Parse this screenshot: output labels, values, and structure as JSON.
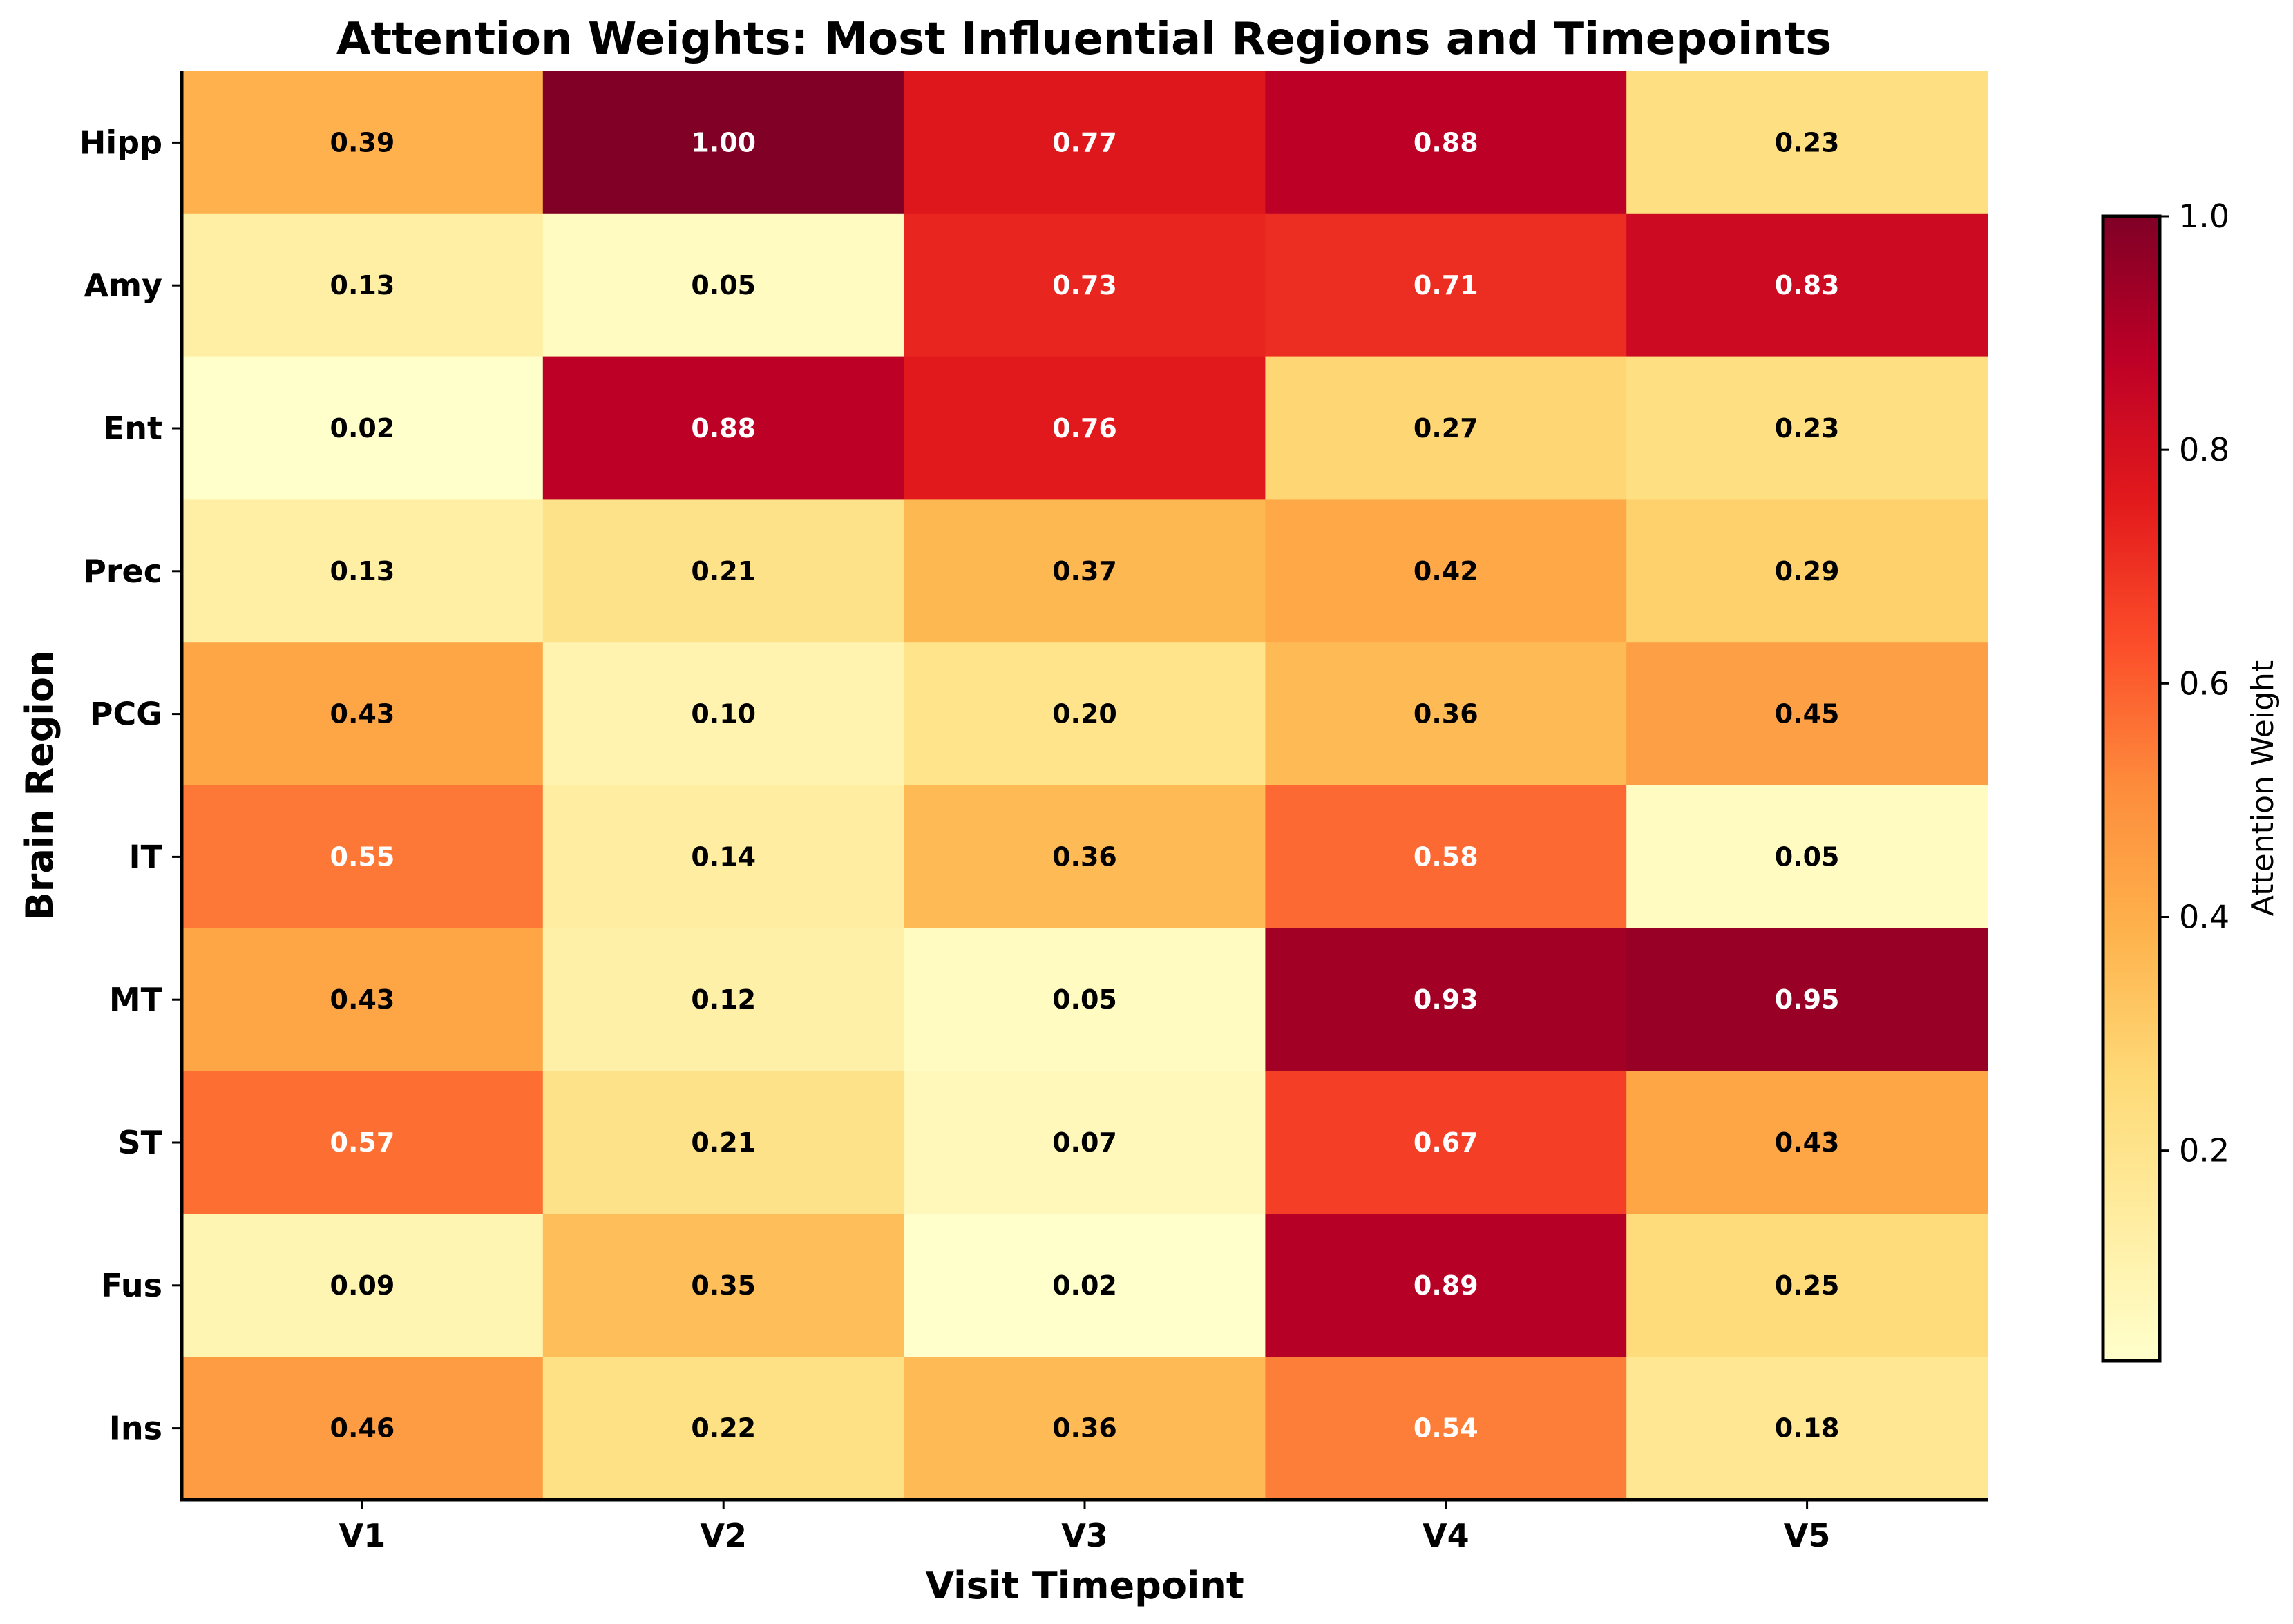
{
  "chart_data": {
    "type": "heatmap",
    "title": "Attention Weights: Most Influential Regions and Timepoints",
    "xlabel": "Visit Timepoint",
    "ylabel": "Brain Region",
    "x_categories": [
      "V1",
      "V2",
      "V3",
      "V4",
      "V5"
    ],
    "y_categories": [
      "Hipp",
      "Amy",
      "Ent",
      "Prec",
      "PCG",
      "IT",
      "MT",
      "ST",
      "Fus",
      "Ins"
    ],
    "values": [
      [
        0.39,
        1.0,
        0.77,
        0.88,
        0.23
      ],
      [
        0.13,
        0.05,
        0.73,
        0.71,
        0.83
      ],
      [
        0.02,
        0.88,
        0.76,
        0.27,
        0.23
      ],
      [
        0.13,
        0.21,
        0.37,
        0.42,
        0.29
      ],
      [
        0.43,
        0.1,
        0.2,
        0.36,
        0.45
      ],
      [
        0.55,
        0.14,
        0.36,
        0.58,
        0.05
      ],
      [
        0.43,
        0.12,
        0.05,
        0.93,
        0.95
      ],
      [
        0.57,
        0.21,
        0.07,
        0.67,
        0.43
      ],
      [
        0.09,
        0.35,
        0.02,
        0.89,
        0.25
      ],
      [
        0.46,
        0.22,
        0.36,
        0.54,
        0.18
      ]
    ],
    "value_format": "2 decimals",
    "colormap": "YlOrRd",
    "colormap_stops": [
      "#ffffcc",
      "#ffeda0",
      "#fed976",
      "#feb24c",
      "#fd8d3c",
      "#fc4e2a",
      "#e31a1c",
      "#bd0026",
      "#800026"
    ],
    "color_range": [
      0.02,
      1.0
    ],
    "colorbar": {
      "label": "Attention Weight",
      "ticks": [
        0.2,
        0.4,
        0.6,
        0.8,
        1.0
      ],
      "tick_labels": [
        "0.2",
        "0.4",
        "0.6",
        "0.8",
        "1.0"
      ]
    },
    "label_color_threshold": 0.5,
    "label_color_dark": "#000000",
    "label_color_light": "#ffffff",
    "grid": false
  }
}
